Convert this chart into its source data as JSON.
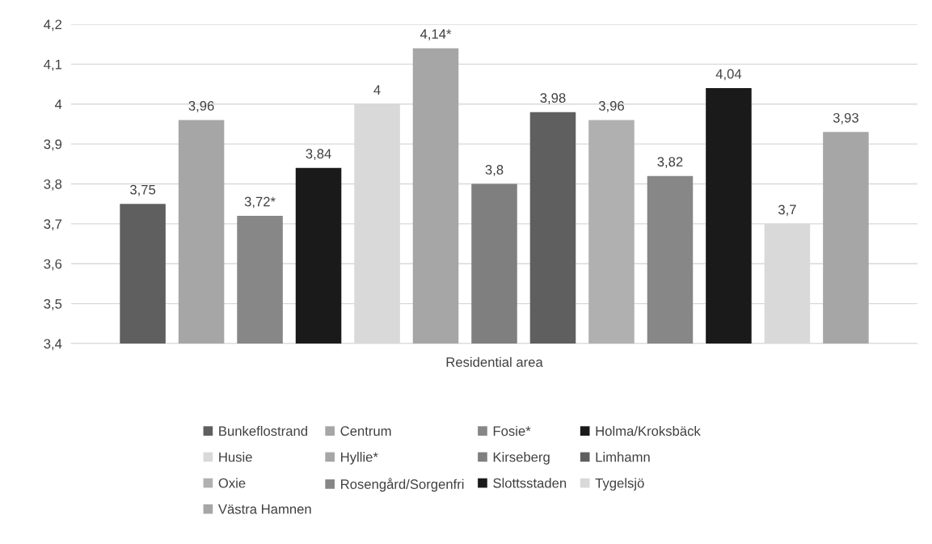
{
  "chart_data": {
    "type": "bar",
    "categories": [
      "Residential area"
    ],
    "ylim": [
      3.4,
      4.2
    ],
    "yticks": [
      {
        "value": 3.4,
        "label": "3,4"
      },
      {
        "value": 3.5,
        "label": "3,5"
      },
      {
        "value": 3.6,
        "label": "3,6"
      },
      {
        "value": 3.7,
        "label": "3,7"
      },
      {
        "value": 3.8,
        "label": "3,8"
      },
      {
        "value": 3.9,
        "label": "3,9"
      },
      {
        "value": 4.0,
        "label": "4"
      },
      {
        "value": 4.1,
        "label": "4,1"
      },
      {
        "value": 4.2,
        "label": "4,2"
      }
    ],
    "grid": "y",
    "legend": "bottom",
    "series": [
      {
        "name": "Bunkeflostrand",
        "color": "#5f5f5f",
        "values": [
          3.75
        ],
        "value_labels": [
          "3,75"
        ]
      },
      {
        "name": "Centrum",
        "color": "#a6a6a6",
        "values": [
          3.96
        ],
        "value_labels": [
          "3,96"
        ]
      },
      {
        "name": "Fosie*",
        "color": "#878787",
        "values": [
          3.72
        ],
        "value_labels": [
          "3,72*"
        ]
      },
      {
        "name": "Holma/Kroksbäck",
        "color": "#1a1a1a",
        "values": [
          3.84
        ],
        "value_labels": [
          "3,84"
        ]
      },
      {
        "name": "Husie",
        "color": "#d9d9d9",
        "values": [
          4.0
        ],
        "value_labels": [
          "4"
        ]
      },
      {
        "name": "Hyllie*",
        "color": "#a6a6a6",
        "values": [
          4.14
        ],
        "value_labels": [
          "4,14*"
        ]
      },
      {
        "name": "Kirseberg",
        "color": "#7f7f7f",
        "values": [
          3.8
        ],
        "value_labels": [
          "3,8"
        ]
      },
      {
        "name": "Limhamn",
        "color": "#5f5f5f",
        "values": [
          3.98
        ],
        "value_labels": [
          "3,98"
        ]
      },
      {
        "name": "Oxie",
        "color": "#b0b0b0",
        "values": [
          3.96
        ],
        "value_labels": [
          "3,96"
        ]
      },
      {
        "name": "Rosengård/Sorgenfri",
        "color": "#878787",
        "values": [
          3.82
        ],
        "value_labels": [
          "3,82"
        ]
      },
      {
        "name": "Slottsstaden",
        "color": "#1a1a1a",
        "values": [
          4.04
        ],
        "value_labels": [
          "4,04"
        ]
      },
      {
        "name": "Tygelsjö",
        "color": "#d9d9d9",
        "values": [
          3.7
        ],
        "value_labels": [
          "3,7"
        ]
      },
      {
        "name": "Västra Hamnen",
        "color": "#a6a6a6",
        "values": [
          3.93
        ],
        "value_labels": [
          "3,93"
        ]
      }
    ]
  }
}
